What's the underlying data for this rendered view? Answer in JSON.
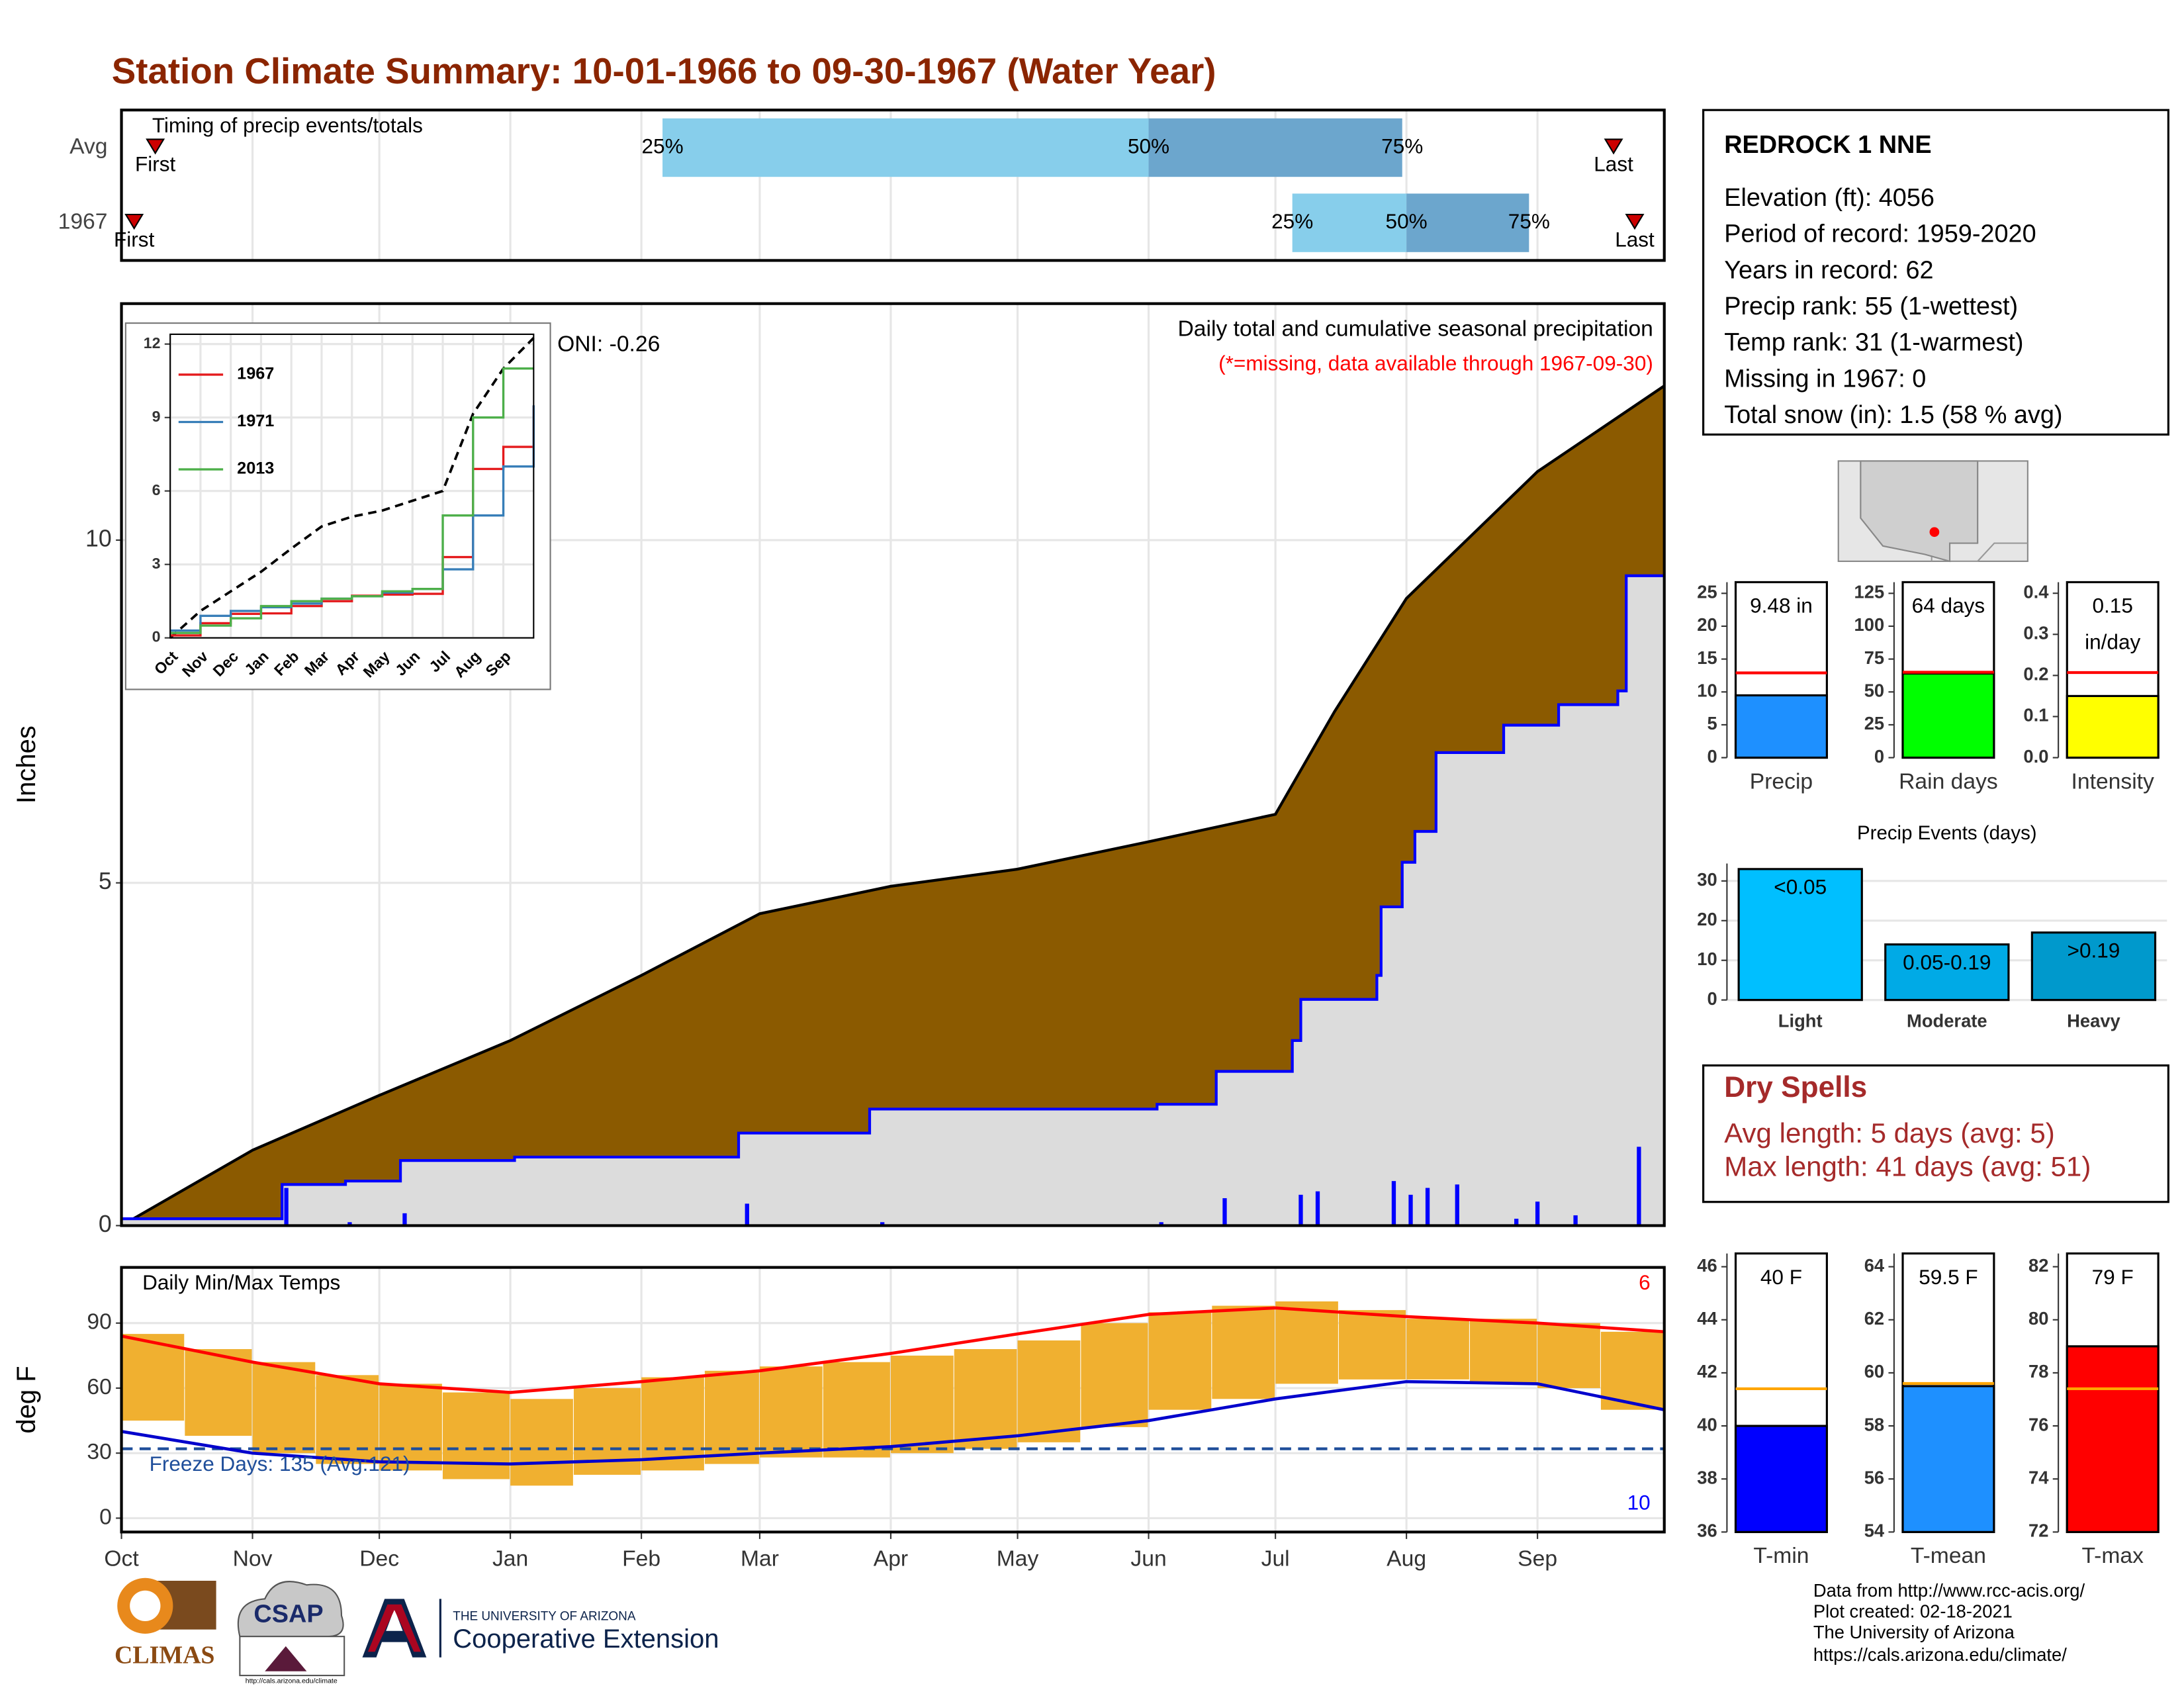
{
  "title": "Station Climate Summary: 10-01-1966 to 09-30-1967 (Water Year)",
  "chart_data": [
    {
      "type": "timeline",
      "title": "Timing of precip events/totals",
      "categories": [
        "Avg",
        "1967"
      ],
      "first": [
        8,
        3
      ],
      "q25": [
        128,
        277
      ],
      "q50": [
        243,
        304
      ],
      "q75": [
        303,
        333
      ],
      "last": [
        353,
        358
      ],
      "labels": {
        "first": "First",
        "q25": "25%",
        "q50": "50%",
        "q75": "75%",
        "last": "Last"
      },
      "colors": [
        "#87ceeb",
        "#6ca6cd"
      ],
      "marker_color": "#cc0000",
      "xlim": [
        0,
        365
      ],
      "xticks": [
        0,
        31,
        61,
        92,
        123,
        151,
        182,
        212,
        243,
        273,
        304,
        335
      ],
      "grid": true
    },
    {
      "type": "area",
      "ylabel": "Inches",
      "oni": "ONI: -0.26",
      "subtitle": "Daily total and cumulative seasonal precipitation",
      "note": "(*=missing, data available through 1967-09-30)",
      "note_color": "#ff0000",
      "xlim": [
        0,
        365
      ],
      "xticks": [
        0,
        31,
        61,
        92,
        123,
        151,
        182,
        212,
        243,
        273,
        304,
        335
      ],
      "ylim": [
        0,
        13.45
      ],
      "yticks": [
        0,
        5,
        10
      ],
      "grid": true,
      "series": [
        {
          "style": "area",
          "color": "#8b5a00",
          "x": [
            0,
            31,
            61,
            92,
            123,
            151,
            182,
            212,
            243,
            273,
            287,
            304,
            335,
            365
          ],
          "values": [
            0,
            1.1,
            1.9,
            2.7,
            3.65,
            4.55,
            4.95,
            5.2,
            5.6,
            6.0,
            7.5,
            9.15,
            11.0,
            12.25
          ]
        },
        {
          "style": "step",
          "color": "#0000ff",
          "fill": "#dcdcdc",
          "x": [
            0,
            38,
            53,
            66,
            93,
            146,
            177,
            245,
            259,
            277,
            279,
            297,
            298,
            303,
            306,
            311,
            327,
            340,
            354,
            356,
            365
          ],
          "values": [
            0.1,
            0.6,
            0.65,
            0.95,
            1.0,
            1.35,
            1.7,
            1.77,
            2.25,
            2.7,
            3.3,
            3.65,
            4.65,
            5.3,
            5.75,
            6.9,
            7.3,
            7.6,
            7.8,
            9.48,
            9.48
          ]
        },
        {
          "style": "bars",
          "color": "#0000ff",
          "x": [
            39,
            54,
            67,
            148,
            180,
            246,
            261,
            279,
            283,
            301,
            305,
            309,
            316,
            330,
            335,
            344,
            359
          ],
          "values": [
            0.55,
            0.05,
            0.18,
            0.32,
            0.05,
            0.05,
            0.4,
            0.45,
            0.5,
            0.65,
            0.45,
            0.55,
            0.6,
            0.1,
            0.35,
            0.15,
            1.15
          ]
        }
      ]
    },
    {
      "type": "line",
      "xlim": [
        0,
        12
      ],
      "ylim": [
        0,
        12.4
      ],
      "x": [
        0,
        1,
        2,
        3,
        4,
        5,
        6,
        7,
        8,
        9,
        10,
        11,
        12
      ],
      "xticks": [
        {
          "value": 0,
          "label": "Oct"
        },
        {
          "value": 1,
          "label": "Nov"
        },
        {
          "value": 2,
          "label": "Dec"
        },
        {
          "value": 3,
          "label": "Jan"
        },
        {
          "value": 4,
          "label": "Feb"
        },
        {
          "value": 5,
          "label": "Mar"
        },
        {
          "value": 6,
          "label": "Apr"
        },
        {
          "value": 7,
          "label": "May"
        },
        {
          "value": 8,
          "label": "Jun"
        },
        {
          "value": 9,
          "label": "Jul"
        },
        {
          "value": 10,
          "label": "Aug"
        },
        {
          "value": 11,
          "label": "Sep"
        }
      ],
      "yticks": [
        0,
        3,
        6,
        9,
        12
      ],
      "average": {
        "color": "#000000",
        "values": [
          0,
          1.1,
          1.9,
          2.7,
          3.65,
          4.55,
          4.95,
          5.2,
          5.6,
          6.0,
          9.15,
          11.0,
          12.25
        ]
      },
      "series": [
        {
          "name": "1967",
          "color": "#e41a1c",
          "values": [
            0.1,
            0.6,
            0.98,
            1.0,
            1.3,
            1.5,
            1.72,
            1.77,
            1.8,
            3.3,
            6.9,
            7.8,
            9.48
          ]
        },
        {
          "name": "1971",
          "color": "#377eb8",
          "values": [
            0.3,
            0.9,
            1.1,
            1.25,
            1.4,
            1.6,
            1.7,
            1.85,
            2.0,
            2.8,
            5.0,
            7.0,
            9.5
          ]
        },
        {
          "name": "2013",
          "color": "#4daf4a",
          "values": [
            0.2,
            0.5,
            0.8,
            1.3,
            1.5,
            1.6,
            1.7,
            1.9,
            2.0,
            5.0,
            9.0,
            11.0,
            11.0
          ]
        }
      ]
    },
    {
      "type": "range",
      "title": "Daily Min/Max Temps",
      "ylabel": "deg F",
      "xlim": [
        0,
        365
      ],
      "ylim": [
        -6.4,
        115.7
      ],
      "yticks": [
        0,
        30,
        60,
        90
      ],
      "xticks": [
        {
          "value": 0,
          "label": "Oct"
        },
        {
          "value": 31,
          "label": "Nov"
        },
        {
          "value": 61,
          "label": "Dec"
        },
        {
          "value": 92,
          "label": "Jan"
        },
        {
          "value": 123,
          "label": "Feb"
        },
        {
          "value": 151,
          "label": "Mar"
        },
        {
          "value": 182,
          "label": "Apr"
        },
        {
          "value": 212,
          "label": "May"
        },
        {
          "value": 243,
          "label": "Jun"
        },
        {
          "value": 273,
          "label": "Jul"
        },
        {
          "value": 304,
          "label": "Aug"
        },
        {
          "value": 335,
          "label": "Sep"
        }
      ],
      "grid": true,
      "color": "#f0b030",
      "x": [
        0,
        15,
        31,
        46,
        61,
        76,
        92,
        107,
        123,
        138,
        151,
        166,
        182,
        197,
        212,
        227,
        243,
        258,
        273,
        288,
        304,
        319,
        335,
        350
      ],
      "max": [
        85,
        78,
        72,
        66,
        62,
        58,
        55,
        60,
        65,
        68,
        70,
        72,
        75,
        78,
        82,
        90,
        95,
        98,
        100,
        96,
        92,
        92,
        90,
        86
      ],
      "min": [
        45,
        38,
        30,
        25,
        22,
        18,
        15,
        20,
        22,
        25,
        28,
        28,
        30,
        32,
        35,
        42,
        50,
        55,
        62,
        64,
        64,
        62,
        60,
        50
      ],
      "avg_max": {
        "color": "#ff0000",
        "x": [
          0,
          31,
          61,
          92,
          123,
          151,
          182,
          212,
          243,
          273,
          304,
          335,
          365
        ],
        "values": [
          84,
          72,
          62,
          58,
          63,
          68,
          76,
          85,
          94,
          97,
          93,
          90,
          86
        ]
      },
      "avg_min": {
        "color": "#0000cc",
        "x": [
          0,
          31,
          61,
          92,
          123,
          151,
          182,
          212,
          243,
          273,
          304,
          335,
          365
        ],
        "values": [
          40,
          30,
          26,
          25,
          27,
          30,
          33,
          38,
          45,
          55,
          63,
          62,
          50
        ]
      },
      "freeze": {
        "value": 32,
        "label": "Freeze Days: 135 (Avg:121)",
        "color": "#1f4e9a"
      },
      "record_highs": 6,
      "record_high_color": "#ff0000",
      "record_lows": 10,
      "record_low_color": "#0000ff"
    },
    {
      "type": "bar",
      "categories": [
        "Precip"
      ],
      "values": [
        9.48
      ],
      "value_labels": [
        "9.48 in"
      ],
      "avg": 12.9,
      "avg_color": "#ff0000",
      "color": "#1e90ff",
      "ylim": [
        0,
        26.7
      ],
      "yticks": [
        0,
        5,
        10,
        15,
        20,
        25
      ],
      "column_box": true
    },
    {
      "type": "bar",
      "categories": [
        "Rain days"
      ],
      "values": [
        64
      ],
      "value_labels": [
        "64 days"
      ],
      "avg": 65,
      "avg_color": "#ff0000",
      "color": "#00ff00",
      "ylim": [
        0,
        133.5
      ],
      "yticks": [
        0,
        25,
        50,
        75,
        100,
        125
      ],
      "column_box": true
    },
    {
      "type": "bar",
      "categories": [
        "Intensity"
      ],
      "values": [
        0.15
      ],
      "value_labels": [
        "0.15"
      ],
      "unit": "in/day",
      "avg": 0.207,
      "avg_color": "#ff0000",
      "color": "#ffff00",
      "ylim": [
        0,
        0.427
      ],
      "yticks": [
        {
          "value": 0,
          "label": "0.0"
        },
        0.1,
        0.2,
        0.3,
        0.4
      ],
      "column_box": true
    },
    {
      "type": "bar",
      "title": "Precip Events (days)",
      "categories": [
        "Light",
        "Moderate",
        "Heavy"
      ],
      "values": [
        33,
        14,
        17
      ],
      "value_labels": [
        "<0.05",
        "0.05-0.19",
        ">0.19"
      ],
      "colors": [
        "#00bfff",
        "#00aae6",
        "#0099cc"
      ],
      "ylim": [
        0,
        34.4
      ],
      "yticks": [
        0,
        10,
        20,
        30
      ],
      "grid": true
    },
    {
      "type": "bar",
      "categories": [
        "T-min"
      ],
      "values": [
        40
      ],
      "value_labels": [
        "40 F"
      ],
      "avg": 41.4,
      "avg_color": "#ffa500",
      "color": "#0000ff",
      "ylim": [
        36,
        46.5
      ],
      "yticks": [
        36,
        38,
        40,
        42,
        44,
        46
      ],
      "column_box": true
    },
    {
      "type": "bar",
      "categories": [
        "T-mean"
      ],
      "values": [
        59.5
      ],
      "value_labels": [
        "59.5 F"
      ],
      "avg": 59.6,
      "avg_color": "#ffa500",
      "color": "#1e90ff",
      "ylim": [
        54,
        64.5
      ],
      "yticks": [
        54,
        56,
        58,
        60,
        62,
        64
      ],
      "column_box": true
    },
    {
      "type": "bar",
      "categories": [
        "T-max"
      ],
      "values": [
        79
      ],
      "value_labels": [
        "79 F"
      ],
      "avg": 77.4,
      "avg_color": "#ffa500",
      "color": "#ff0000",
      "ylim": [
        72,
        82.5
      ],
      "yticks": [
        72,
        74,
        76,
        78,
        80,
        82
      ],
      "column_box": true
    }
  ],
  "station": {
    "name": "REDROCK 1 NNE",
    "lines": [
      "Elevation (ft): 4056",
      "Period of record: 1959-2020",
      "Years in record: 62",
      "Precip rank: 55 (1-wettest)",
      "Temp rank: 31 (1-warmest)",
      "Missing in 1967: 0",
      "Total snow (in): 1.5 (58 % avg)"
    ]
  },
  "dry_spells": {
    "title": "Dry Spells",
    "lines": [
      "Avg length: 5 days (avg: 5)",
      "Max length: 41 days (avg: 51)"
    ]
  },
  "footer": {
    "credits": [
      "Data from http://www.rcc-acis.org/",
      "Plot created: 02-18-2021",
      "The University of Arizona",
      "https://cals.arizona.edu/climate/"
    ],
    "logos": {
      "climas": "CLIMAS",
      "csap": "CSAP",
      "csap_url": "http://cals.arizona.edu/climate",
      "university": "THE UNIVERSITY OF ARIZONA",
      "extension": "Cooperative Extension"
    }
  }
}
